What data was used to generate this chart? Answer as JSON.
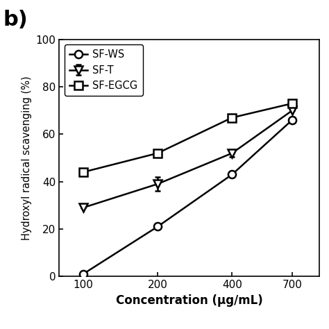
{
  "x": [
    100,
    200,
    400,
    700
  ],
  "sf_ws": [
    1,
    21,
    43,
    66
  ],
  "sf_t": [
    29,
    39,
    52,
    70
  ],
  "sf_egcg": [
    44,
    52,
    67,
    73
  ],
  "sf_ws_err": [
    0,
    0,
    0,
    0
  ],
  "sf_t_err": [
    0,
    3,
    1.5,
    0
  ],
  "sf_egcg_err": [
    0,
    0,
    0,
    0
  ],
  "xlabel": "Concentration (μg/mL)",
  "ylabel": "Hydroxyl radical scavenging (%)",
  "ylim": [
    0,
    100
  ],
  "yticks": [
    0,
    20,
    40,
    60,
    80,
    100
  ],
  "xticks": [
    100,
    200,
    400,
    700
  ],
  "legend_labels": [
    "SF-WS",
    "SF-T",
    "SF-EGCG"
  ],
  "panel_label": "b)",
  "bg_color": "#ffffff",
  "line_color": "#000000"
}
